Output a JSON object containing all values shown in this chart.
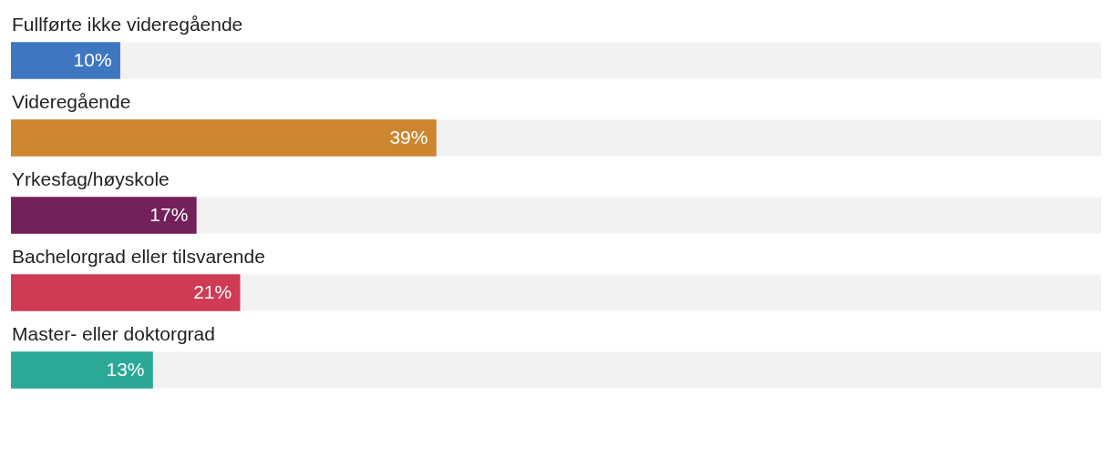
{
  "chart_data": {
    "type": "bar",
    "orientation": "horizontal",
    "categories": [
      "Fullførte ikke videregående",
      "Videregående",
      "Yrkesfag/høyskole",
      "Bachelorgrad eller tilsvarende",
      "Master- eller doktorgrad"
    ],
    "values": [
      10,
      39,
      17,
      21,
      13
    ],
    "colors": [
      "#3e76bf",
      "#cd8530",
      "#74205b",
      "#cf3b54",
      "#2ba896"
    ],
    "value_labels": [
      "10%",
      "39%",
      "17%",
      "21%",
      "13%"
    ],
    "xlim": [
      0,
      100
    ]
  }
}
